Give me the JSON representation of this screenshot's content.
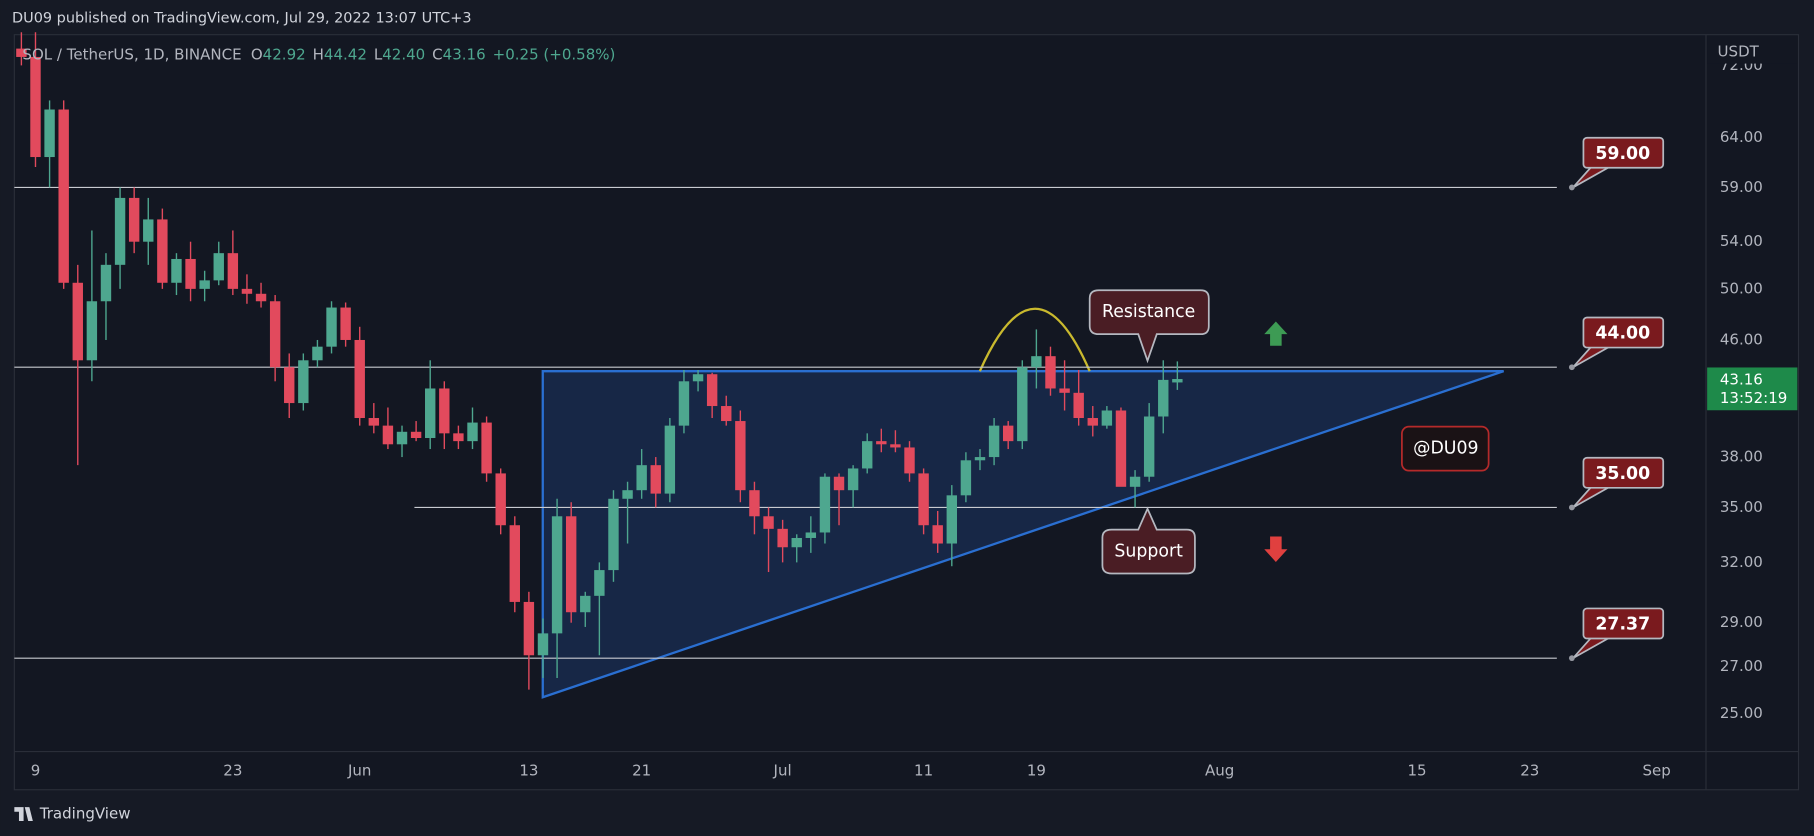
{
  "header": {
    "publisher": "DU09 published on TradingView.com, Jul 29, 2022 13:07 UTC+3"
  },
  "legend": {
    "symbol": "SOL / TetherUS, 1D, BINANCE",
    "items": [
      {
        "label": "O",
        "value": "42.92"
      },
      {
        "label": "H",
        "value": "44.42"
      },
      {
        "label": "L",
        "value": "42.40"
      },
      {
        "label": "C",
        "value": "43.16"
      }
    ],
    "change": "+0.25 (+0.58%)"
  },
  "chart_data": {
    "type": "candlestick",
    "log_scale": true,
    "grid": false,
    "up_color": "#4ea78f",
    "down_color": "#e24a5d",
    "x": [
      "2022-05-08",
      "2022-05-09",
      "2022-05-10",
      "2022-05-11",
      "2022-05-12",
      "2022-05-13",
      "2022-05-14",
      "2022-05-15",
      "2022-05-16",
      "2022-05-17",
      "2022-05-18",
      "2022-05-19",
      "2022-05-20",
      "2022-05-21",
      "2022-05-22",
      "2022-05-23",
      "2022-05-24",
      "2022-05-25",
      "2022-05-26",
      "2022-05-27",
      "2022-05-28",
      "2022-05-29",
      "2022-05-30",
      "2022-05-31",
      "2022-06-01",
      "2022-06-02",
      "2022-06-03",
      "2022-06-04",
      "2022-06-05",
      "2022-06-06",
      "2022-06-07",
      "2022-06-08",
      "2022-06-09",
      "2022-06-10",
      "2022-06-11",
      "2022-06-12",
      "2022-06-13",
      "2022-06-14",
      "2022-06-15",
      "2022-06-16",
      "2022-06-17",
      "2022-06-18",
      "2022-06-19",
      "2022-06-20",
      "2022-06-21",
      "2022-06-22",
      "2022-06-23",
      "2022-06-24",
      "2022-06-25",
      "2022-06-26",
      "2022-06-27",
      "2022-06-28",
      "2022-06-29",
      "2022-06-30",
      "2022-07-01",
      "2022-07-02",
      "2022-07-03",
      "2022-07-04",
      "2022-07-05",
      "2022-07-06",
      "2022-07-07",
      "2022-07-08",
      "2022-07-09",
      "2022-07-10",
      "2022-07-11",
      "2022-07-12",
      "2022-07-13",
      "2022-07-14",
      "2022-07-15",
      "2022-07-16",
      "2022-07-17",
      "2022-07-18",
      "2022-07-19",
      "2022-07-20",
      "2022-07-21",
      "2022-07-22",
      "2022-07-23",
      "2022-07-24",
      "2022-07-25",
      "2022-07-26",
      "2022-07-27",
      "2022-07-28",
      "2022-07-29"
    ],
    "open": [
      74,
      73,
      62,
      67,
      50.5,
      44.5,
      49,
      52,
      58,
      54,
      56,
      50.5,
      52.5,
      50,
      50.7,
      53,
      50,
      49.6,
      49,
      44,
      41.5,
      44.5,
      45.5,
      48.5,
      46,
      40.5,
      40,
      38.8,
      39.6,
      39.2,
      42.5,
      39.5,
      39,
      40.2,
      37,
      34,
      30,
      27.5,
      28.5,
      34.5,
      29.5,
      30.3,
      31.6,
      35.5,
      36,
      37.5,
      35.8,
      40,
      43,
      43.5,
      41.3,
      40.3,
      36,
      34.5,
      33.8,
      32.8,
      33.3,
      33.6,
      36.8,
      36,
      37.3,
      39,
      38.8,
      38.6,
      37,
      34,
      33,
      35.7,
      37.8,
      38,
      40,
      39,
      44,
      44.8,
      42.5,
      42.2,
      40.5,
      40,
      41,
      36.2,
      36.8,
      40.6,
      42.92
    ],
    "high": [
      76,
      76,
      68,
      68,
      52,
      55,
      53,
      59,
      59,
      58,
      57,
      53,
      54,
      51.5,
      54,
      55,
      51.2,
      50.5,
      49.5,
      45,
      45,
      46,
      49,
      48.9,
      47,
      41.5,
      41.2,
      40,
      40.3,
      44.5,
      43,
      40,
      41.2,
      40.6,
      37.3,
      34.5,
      30.5,
      29.2,
      35.5,
      35.3,
      30.5,
      32,
      36,
      36.5,
      38.5,
      38,
      40.5,
      43.8,
      43.8,
      43.6,
      42,
      41,
      36.5,
      35,
      34.3,
      33.5,
      34.5,
      37,
      37,
      37.5,
      39.5,
      39.8,
      39.7,
      39,
      37.3,
      34.8,
      36.3,
      38.3,
      38.5,
      40.5,
      40.3,
      44.5,
      46.8,
      45.5,
      44.5,
      43.8,
      41.3,
      41.3,
      41.2,
      37.2,
      41.5,
      44.5,
      44.42
    ],
    "low": [
      72,
      61,
      59,
      50,
      37.5,
      43,
      46,
      50,
      53,
      52,
      50,
      49.5,
      49,
      49,
      50.3,
      49.5,
      48.8,
      48.5,
      43,
      40.5,
      41,
      44,
      45,
      45.5,
      40,
      39.5,
      38.5,
      38,
      39,
      38.5,
      38.5,
      38.5,
      38.5,
      36.5,
      33.5,
      29.5,
      26,
      26.5,
      26.5,
      29,
      28.8,
      27.5,
      31,
      33,
      35.5,
      35,
      35.3,
      39.5,
      42.3,
      40.5,
      40,
      35.3,
      33.5,
      31.5,
      32,
      32,
      32.5,
      33,
      34,
      35,
      37,
      38.3,
      38.3,
      36.5,
      33.5,
      32.5,
      31.8,
      35.3,
      37.2,
      37.5,
      38.5,
      38.5,
      42.5,
      42,
      41,
      40,
      39.3,
      39.8,
      36.3,
      35,
      36.5,
      39.5,
      42.4
    ],
    "close": [
      73,
      62,
      67,
      50.5,
      44.5,
      49,
      52,
      58,
      54,
      56,
      50.5,
      52.5,
      50,
      50.7,
      53,
      50,
      49.6,
      49,
      44,
      41.5,
      44.5,
      45.5,
      48.5,
      46,
      40.5,
      40,
      38.8,
      39.6,
      39.2,
      42.5,
      39.5,
      39,
      40.2,
      37,
      34,
      30,
      27.5,
      28.5,
      34.5,
      29.5,
      30.3,
      31.6,
      35.5,
      36,
      37.5,
      35.8,
      40,
      43,
      43.5,
      41.3,
      40.3,
      36,
      34.5,
      33.8,
      32.8,
      33.3,
      33.6,
      36.8,
      36,
      37.3,
      39,
      38.8,
      38.6,
      37,
      34,
      33,
      35.7,
      37.8,
      38,
      40,
      39,
      44,
      44.8,
      42.5,
      42.2,
      40.5,
      40,
      41,
      36.2,
      36.8,
      40.6,
      43.1,
      43.16
    ],
    "xlim": [
      "2022-05-07T12:00:00",
      "2022-09-04T12:00:00"
    ],
    "xticks": [
      {
        "value": "2022-05-09",
        "label": "9"
      },
      {
        "value": "2022-05-23",
        "label": "23"
      },
      {
        "value": "2022-06-01",
        "label": "Jun"
      },
      {
        "value": "2022-06-13",
        "label": "13"
      },
      {
        "value": "2022-06-21",
        "label": "21"
      },
      {
        "value": "2022-07-01",
        "label": "Jul"
      },
      {
        "value": "2022-07-11",
        "label": "11"
      },
      {
        "value": "2022-07-19",
        "label": "19"
      },
      {
        "value": "2022-08-01",
        "label": "Aug"
      },
      {
        "value": "2022-08-15",
        "label": "15"
      },
      {
        "value": "2022-08-23",
        "label": "23"
      },
      {
        "value": "2022-09-01",
        "label": "Sep"
      }
    ],
    "ylim": [
      23.5,
      75.7
    ],
    "yticks": [
      {
        "value": 72,
        "label": "72.00"
      },
      {
        "value": 64,
        "label": "64.00"
      },
      {
        "value": 59,
        "label": "59.00"
      },
      {
        "value": 54,
        "label": "54.00"
      },
      {
        "value": 50,
        "label": "50.00"
      },
      {
        "value": 46,
        "label": "46.00"
      },
      {
        "value": 38,
        "label": "38.00"
      },
      {
        "value": 35,
        "label": "35.00"
      },
      {
        "value": 32,
        "label": "32.00"
      },
      {
        "value": 29,
        "label": "29.00"
      },
      {
        "value": 27,
        "label": "27.00"
      },
      {
        "value": 25,
        "label": "25.00"
      }
    ],
    "y_axis_label": "USDT",
    "levels": [
      {
        "value": 59,
        "label": "59.00"
      },
      {
        "value": 44,
        "label": "44.00"
      },
      {
        "value": 35,
        "label": "35.00"
      },
      {
        "value": 27.37,
        "label": "27.37"
      }
    ],
    "last_price": 43.16,
    "countdown": "13:52:19",
    "annotations": {
      "resistance": "Resistance",
      "support": "Support",
      "watermark": "@DU09"
    }
  },
  "footer": {
    "brand": "TradingView"
  }
}
